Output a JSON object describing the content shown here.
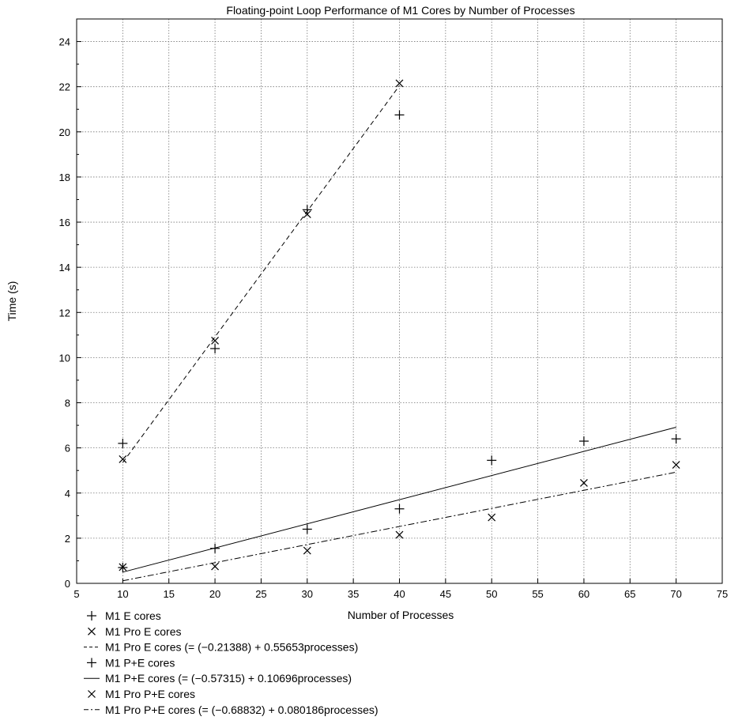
{
  "chart_data": {
    "type": "scatter",
    "title": "Floating-point Loop Performance of M1 Cores by Number of Processes",
    "xlabel": "Number of Processes",
    "ylabel": "Time (s)",
    "xlim": [
      5,
      75
    ],
    "ylim": [
      0,
      25
    ],
    "xticks": [
      5,
      10,
      15,
      20,
      25,
      30,
      35,
      40,
      45,
      50,
      55,
      60,
      65,
      70,
      75
    ],
    "yticks": [
      0,
      2,
      4,
      6,
      8,
      10,
      12,
      14,
      16,
      18,
      20,
      22,
      24
    ],
    "grid": true,
    "legend_position": "bottom-left, below the plot",
    "series": [
      {
        "name": "M1 E cores",
        "kind": "points",
        "marker": "plus",
        "x": [
          10,
          20,
          30,
          40
        ],
        "y": [
          6.2,
          10.4,
          16.55,
          20.75
        ]
      },
      {
        "name": "M1 Pro E cores",
        "kind": "points",
        "marker": "cross",
        "x": [
          10,
          20,
          30,
          40
        ],
        "y": [
          5.5,
          10.75,
          16.35,
          22.15
        ]
      },
      {
        "name": "M1 Pro E cores (= (−0.21388) + 0.55653processes)",
        "kind": "line",
        "dash": "dashed",
        "intercept": -0.21388,
        "slope": 0.55653,
        "x_range": [
          10,
          40
        ]
      },
      {
        "name": "M1 P+E cores",
        "kind": "points",
        "marker": "plus",
        "x": [
          10,
          20,
          30,
          40,
          50,
          60,
          70
        ],
        "y": [
          0.7,
          1.55,
          2.4,
          3.3,
          5.45,
          6.3,
          6.4
        ]
      },
      {
        "name": "M1 P+E cores (= (−0.57315) + 0.10696processes)",
        "kind": "line",
        "dash": "solid",
        "intercept": -0.57315,
        "slope": 0.10696,
        "x_range": [
          10,
          70
        ]
      },
      {
        "name": "M1 Pro P+E cores",
        "kind": "points",
        "marker": "cross",
        "x": [
          10,
          20,
          30,
          40,
          50,
          60,
          70
        ],
        "y": [
          0.72,
          0.75,
          1.45,
          2.15,
          2.92,
          4.45,
          5.25
        ]
      },
      {
        "name": "M1 Pro P+E cores (= (−0.68832) + 0.080186processes)",
        "kind": "line",
        "dash": "dashdot",
        "intercept": -0.68832,
        "slope": 0.080186,
        "x_range": [
          10,
          70
        ]
      }
    ]
  }
}
